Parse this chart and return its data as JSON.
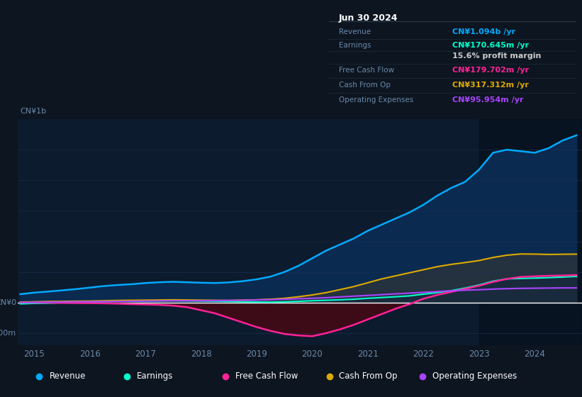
{
  "bg_color": "#0d1520",
  "chart_bg": "#0d1b2e",
  "grid_color": "#1e3050",
  "text_color": "#6a8aaa",
  "revenue_color": "#00aaff",
  "earnings_color": "#00ffcc",
  "fcf_color": "#ff2299",
  "cashfromop_color": "#ddaa00",
  "opex_color": "#aa44ff",
  "revenue_fill": "#0a2a50",
  "fcf_neg_fill": "#3d0a18",
  "legend_items": [
    {
      "label": "Revenue",
      "color": "#00aaff"
    },
    {
      "label": "Earnings",
      "color": "#00ffcc"
    },
    {
      "label": "Free Cash Flow",
      "color": "#ff2299"
    },
    {
      "label": "Cash From Op",
      "color": "#ddaa00"
    },
    {
      "label": "Operating Expenses",
      "color": "#aa44ff"
    }
  ],
  "info_box": {
    "date": "Jun 30 2024",
    "rows": [
      {
        "label": "Revenue",
        "value": "CN¥1.094b /yr",
        "color": "#00aaff"
      },
      {
        "label": "Earnings",
        "value": "CN¥170.645m /yr",
        "color": "#00ffcc"
      },
      {
        "label": "",
        "value": "15.6% profit margin",
        "color": "#cccccc"
      },
      {
        "label": "Free Cash Flow",
        "value": "CN¥179.702m /yr",
        "color": "#ff2299"
      },
      {
        "label": "Cash From Op",
        "value": "CN¥317.312m /yr",
        "color": "#ddaa00"
      },
      {
        "label": "Operating Expenses",
        "value": "CN¥95.954m /yr",
        "color": "#aa44ff"
      }
    ]
  },
  "x_ticks": [
    2015,
    2016,
    2017,
    2018,
    2019,
    2020,
    2021,
    2022,
    2023,
    2024
  ],
  "ylim": [
    -280,
    1200
  ],
  "xlim_min": 2014.7,
  "xlim_max": 2024.85,
  "years": [
    2014.75,
    2015.0,
    2015.25,
    2015.5,
    2015.75,
    2016.0,
    2016.25,
    2016.5,
    2016.75,
    2017.0,
    2017.25,
    2017.5,
    2017.75,
    2018.0,
    2018.25,
    2018.5,
    2018.75,
    2019.0,
    2019.25,
    2019.5,
    2019.75,
    2020.0,
    2020.25,
    2020.5,
    2020.75,
    2021.0,
    2021.25,
    2021.5,
    2021.75,
    2022.0,
    2022.25,
    2022.5,
    2022.75,
    2023.0,
    2023.25,
    2023.5,
    2023.75,
    2024.0,
    2024.25,
    2024.5,
    2024.75
  ],
  "revenue": [
    55,
    65,
    72,
    80,
    88,
    98,
    108,
    115,
    120,
    128,
    133,
    136,
    133,
    130,
    128,
    132,
    140,
    152,
    170,
    200,
    240,
    290,
    340,
    380,
    420,
    470,
    510,
    550,
    590,
    640,
    700,
    750,
    790,
    870,
    980,
    1000,
    990,
    980,
    1010,
    1060,
    1094
  ],
  "earnings": [
    -8,
    -5,
    -3,
    0,
    2,
    4,
    6,
    8,
    9,
    10,
    11,
    12,
    11,
    10,
    9,
    7,
    5,
    4,
    3,
    5,
    8,
    12,
    15,
    18,
    22,
    28,
    33,
    38,
    44,
    55,
    65,
    78,
    95,
    115,
    140,
    155,
    158,
    160,
    163,
    167,
    171
  ],
  "fcf": [
    2,
    1,
    0,
    -1,
    -2,
    -3,
    -5,
    -7,
    -10,
    -12,
    -15,
    -20,
    -30,
    -50,
    -70,
    -100,
    -130,
    -160,
    -185,
    -205,
    -215,
    -220,
    -200,
    -175,
    -145,
    -110,
    -75,
    -40,
    -10,
    25,
    50,
    70,
    90,
    110,
    135,
    155,
    168,
    172,
    175,
    177,
    180
  ],
  "cashfromop": [
    3,
    5,
    7,
    8,
    9,
    10,
    12,
    14,
    15,
    16,
    17,
    18,
    17,
    16,
    15,
    14,
    16,
    18,
    22,
    28,
    38,
    50,
    65,
    85,
    105,
    130,
    155,
    175,
    195,
    215,
    235,
    250,
    262,
    275,
    295,
    310,
    318,
    317,
    315,
    316,
    317
  ],
  "opex": [
    1,
    2,
    3,
    4,
    5,
    6,
    7,
    8,
    9,
    10,
    11,
    12,
    12,
    12,
    13,
    14,
    15,
    17,
    19,
    22,
    25,
    28,
    32,
    37,
    42,
    47,
    52,
    57,
    62,
    67,
    72,
    77,
    81,
    84,
    88,
    91,
    93,
    94,
    95,
    96,
    96
  ]
}
